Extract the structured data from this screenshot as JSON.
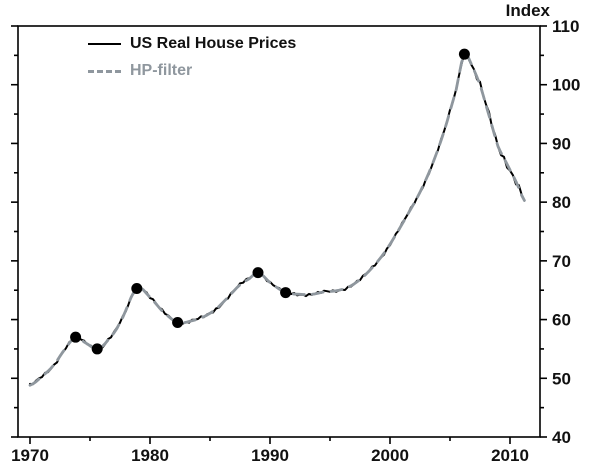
{
  "title": "Index",
  "chart_data": {
    "type": "line",
    "title": "Index",
    "xlabel": "",
    "ylabel": "Index",
    "x_range": [
      1969,
      2012.5
    ],
    "y_range": [
      40,
      110
    ],
    "grid": false,
    "legend_position": "top-left-inside",
    "x_ticks_major": [
      1970,
      1980,
      1990,
      2000,
      2010
    ],
    "x_tick_labels": [
      "1970",
      "1980",
      "1990",
      "2000",
      "2010"
    ],
    "x_ticks_minor": [
      1975,
      1985,
      1995,
      2005
    ],
    "y_ticks_major": [
      40,
      50,
      60,
      70,
      80,
      90,
      100,
      110
    ],
    "y_tick_labels": [
      "40",
      "50",
      "60",
      "70",
      "80",
      "90",
      "100",
      "110"
    ],
    "y_ticks_minor": [
      45,
      55,
      65,
      75,
      85,
      95,
      105
    ],
    "legend": [
      {
        "label": "US Real House Prices",
        "color": "#000000",
        "style": "solid"
      },
      {
        "label": "HP-filter",
        "color": "#8f979e",
        "style": "dashed"
      }
    ],
    "series": [
      {
        "name": "US Real House Prices",
        "color": "#000000",
        "style": "solid",
        "jitter_amplitude": 0.35,
        "points": [
          [
            1970,
            48.8
          ],
          [
            1971,
            50.3
          ],
          [
            1972,
            52.3
          ],
          [
            1973,
            55.2
          ],
          [
            1973.8,
            57.0
          ],
          [
            1974.5,
            56.2
          ],
          [
            1975.6,
            55.0
          ],
          [
            1976.5,
            56.5
          ],
          [
            1977.5,
            59.5
          ],
          [
            1978.9,
            65.3
          ],
          [
            1980,
            63.8
          ],
          [
            1981,
            61.5
          ],
          [
            1982.3,
            59.5
          ],
          [
            1983.5,
            59.8
          ],
          [
            1984.5,
            60.5
          ],
          [
            1985.5,
            61.8
          ],
          [
            1986.5,
            63.8
          ],
          [
            1987.5,
            65.9
          ],
          [
            1988.3,
            67.0
          ],
          [
            1989,
            68.0
          ],
          [
            1990,
            66.3
          ],
          [
            1991.3,
            64.6
          ],
          [
            1992.5,
            64.3
          ],
          [
            1993.5,
            64.3
          ],
          [
            1994.5,
            64.7
          ],
          [
            1995.5,
            64.9
          ],
          [
            1996.5,
            65.5
          ],
          [
            1997.5,
            66.8
          ],
          [
            1998.5,
            68.8
          ],
          [
            1999.5,
            71.3
          ],
          [
            2000.5,
            74.5
          ],
          [
            2001.5,
            78.0
          ],
          [
            2002.5,
            81.7
          ],
          [
            2003.5,
            86.3
          ],
          [
            2004.5,
            92.0
          ],
          [
            2005.5,
            99.0
          ],
          [
            2006.2,
            105.2
          ],
          [
            2007,
            102.5
          ],
          [
            2007.5,
            100.0
          ],
          [
            2008,
            96.5
          ],
          [
            2008.5,
            93.0
          ],
          [
            2009,
            89.5
          ],
          [
            2009.5,
            87.5
          ],
          [
            2010,
            85.5
          ],
          [
            2010.5,
            83.5
          ],
          [
            2011.2,
            80.3
          ]
        ]
      },
      {
        "name": "HP-filter",
        "color": "#8f979e",
        "style": "dashed",
        "jitter_amplitude": 0,
        "points": [
          [
            1970,
            48.8
          ],
          [
            1971,
            50.3
          ],
          [
            1972,
            52.3
          ],
          [
            1973,
            55.2
          ],
          [
            1973.8,
            57.0
          ],
          [
            1974.5,
            56.2
          ],
          [
            1975.6,
            55.0
          ],
          [
            1976.5,
            56.5
          ],
          [
            1977.5,
            59.5
          ],
          [
            1978.9,
            65.3
          ],
          [
            1980,
            63.8
          ],
          [
            1981,
            61.5
          ],
          [
            1982.3,
            59.5
          ],
          [
            1983.5,
            59.8
          ],
          [
            1984.5,
            60.5
          ],
          [
            1985.5,
            61.8
          ],
          [
            1986.5,
            63.8
          ],
          [
            1987.5,
            65.9
          ],
          [
            1988.3,
            67.0
          ],
          [
            1989,
            68.0
          ],
          [
            1990,
            66.3
          ],
          [
            1991.3,
            64.6
          ],
          [
            1992.5,
            64.3
          ],
          [
            1993.5,
            64.3
          ],
          [
            1994.5,
            64.7
          ],
          [
            1995.5,
            64.9
          ],
          [
            1996.5,
            65.5
          ],
          [
            1997.5,
            66.8
          ],
          [
            1998.5,
            68.8
          ],
          [
            1999.5,
            71.3
          ],
          [
            2000.5,
            74.5
          ],
          [
            2001.5,
            78.0
          ],
          [
            2002.5,
            81.7
          ],
          [
            2003.5,
            86.3
          ],
          [
            2004.5,
            92.0
          ],
          [
            2005.5,
            99.0
          ],
          [
            2006.2,
            105.2
          ],
          [
            2007,
            102.5
          ],
          [
            2007.5,
            100.0
          ],
          [
            2008,
            96.5
          ],
          [
            2008.5,
            93.0
          ],
          [
            2009,
            89.5
          ],
          [
            2009.5,
            87.5
          ],
          [
            2010,
            85.5
          ],
          [
            2010.5,
            83.5
          ],
          [
            2011.2,
            80.3
          ]
        ]
      }
    ],
    "turning_points": [
      [
        1973.8,
        57.0
      ],
      [
        1975.6,
        55.0
      ],
      [
        1978.9,
        65.3
      ],
      [
        1982.3,
        59.5
      ],
      [
        1989.0,
        68.0
      ],
      [
        1991.3,
        64.6
      ],
      [
        2006.2,
        105.2
      ]
    ],
    "marker_color": "#000000"
  }
}
